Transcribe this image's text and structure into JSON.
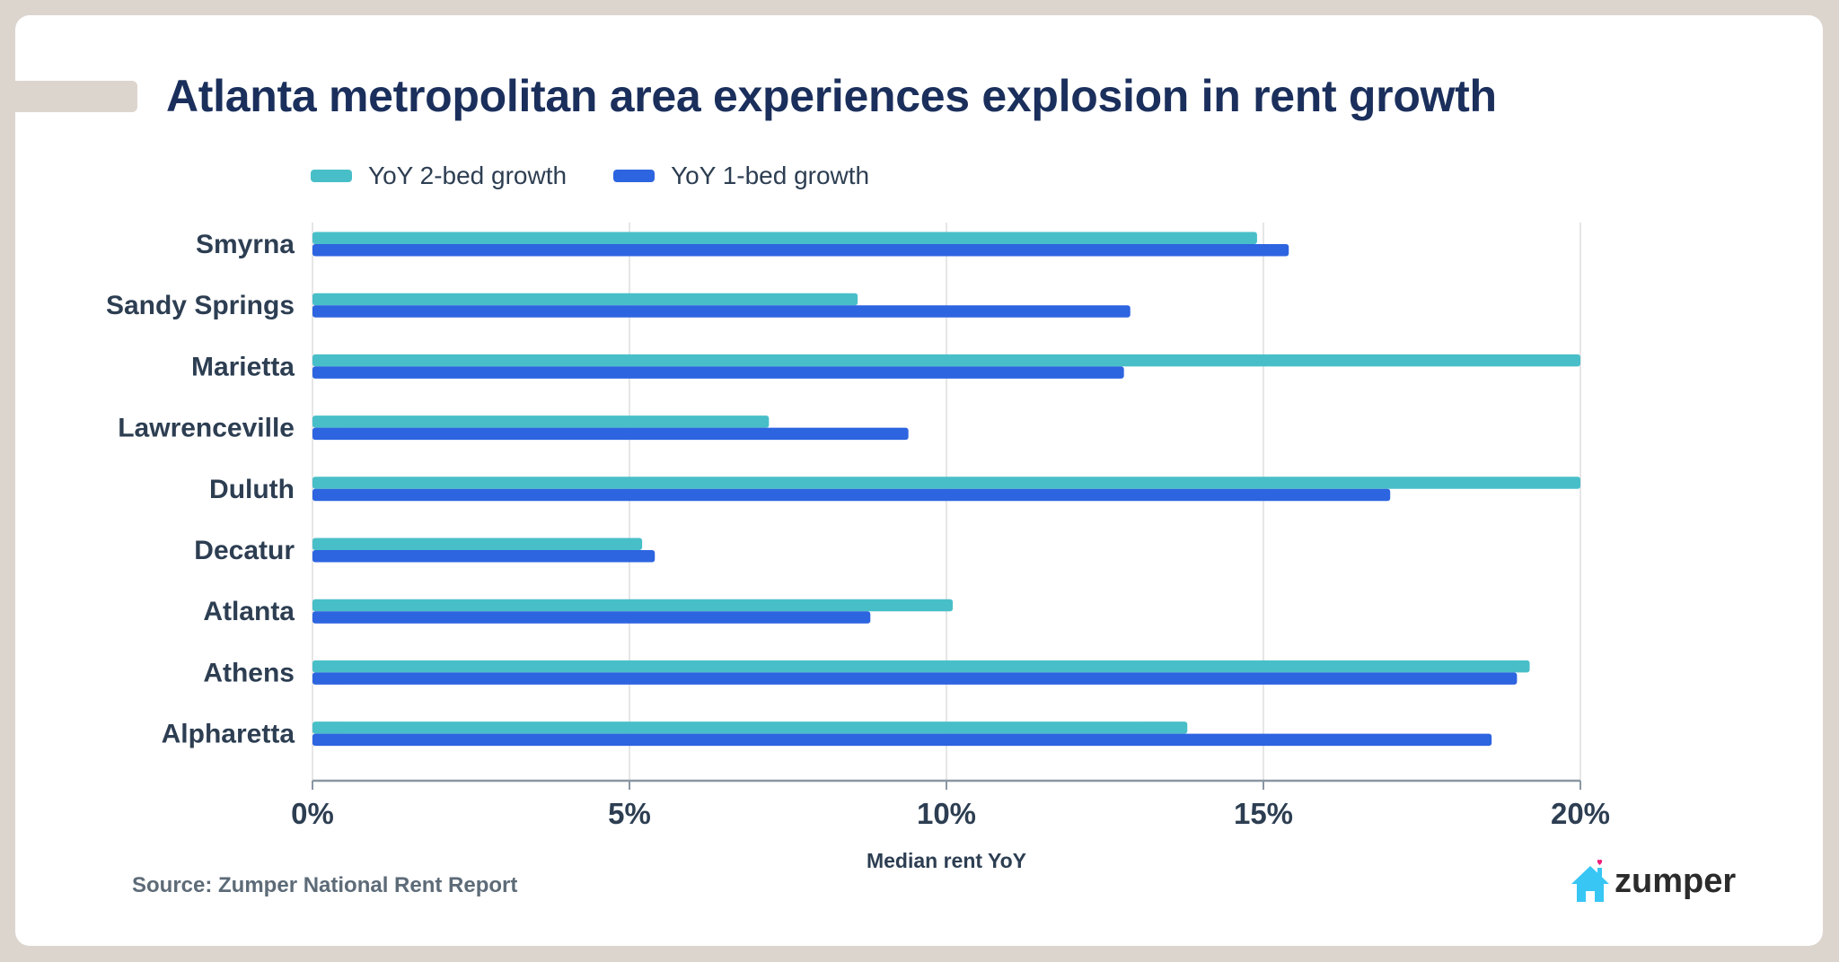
{
  "title": "Atlanta metropolitan area experiences explosion in rent growth",
  "source": "Source: Zumper National Rent Report",
  "brand": {
    "name": "zumper",
    "icon": "house-with-heart-icon",
    "house_color": "#38c6f4",
    "heart_color": "#ee1f7a"
  },
  "colors": {
    "two_bed": "#48bfc8",
    "one_bed": "#2d64e0",
    "title": "#1b2f5c",
    "text": "#2d3e52",
    "grid": "#e6e6e6",
    "axis": "#8a96a3"
  },
  "chart_data": {
    "type": "bar",
    "orientation": "horizontal",
    "title": "Atlanta metropolitan area experiences explosion in rent growth",
    "xlabel": "Median rent YoY",
    "ylabel": "",
    "xlim": [
      0,
      20
    ],
    "xticks": [
      0,
      5,
      10,
      15,
      20
    ],
    "xtick_labels": [
      "0%",
      "5%",
      "10%",
      "15%",
      "20%"
    ],
    "grid": "vertical",
    "legend_position": "top-left",
    "categories": [
      "Smyrna",
      "Sandy Springs",
      "Marietta",
      "Lawrenceville",
      "Duluth",
      "Decatur",
      "Atlanta",
      "Athens",
      "Alpharetta"
    ],
    "series": [
      {
        "name": "YoY 2-bed growth",
        "color": "#48bfc8",
        "values": [
          14.9,
          8.6,
          20.0,
          7.2,
          20.0,
          5.2,
          10.1,
          19.2,
          13.8
        ]
      },
      {
        "name": "YoY 1-bed growth",
        "color": "#2d64e0",
        "values": [
          15.4,
          12.9,
          12.8,
          9.4,
          17.0,
          5.4,
          8.8,
          19.0,
          18.6
        ]
      }
    ]
  }
}
